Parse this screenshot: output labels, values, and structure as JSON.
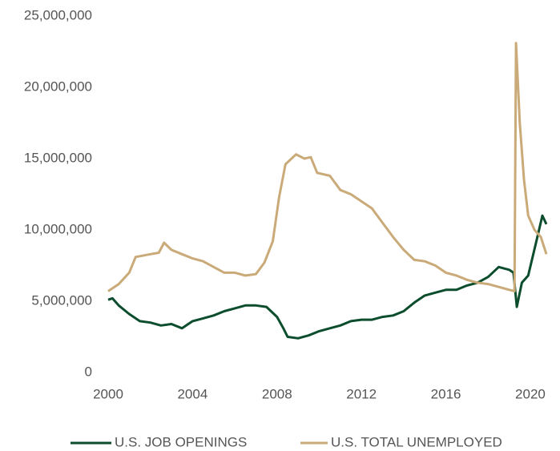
{
  "chart_data": {
    "type": "line",
    "series": [
      {
        "name": "U.S. JOB OPENINGS",
        "color": "#0b4d2c",
        "x": [
          2000,
          2000.2,
          2000.5,
          2001,
          2001.5,
          2002,
          2002.5,
          2003,
          2003.5,
          2004,
          2004.5,
          2005,
          2005.5,
          2006,
          2006.5,
          2007,
          2007.5,
          2008,
          2008.3,
          2008.5,
          2009,
          2009.5,
          2010,
          2010.5,
          2011,
          2011.5,
          2012,
          2012.5,
          2013,
          2013.5,
          2014,
          2014.5,
          2015,
          2015.5,
          2016,
          2016.5,
          2017,
          2017.5,
          2018,
          2018.5,
          2019,
          2019.2,
          2019.36,
          2019.6,
          2019.9,
          2020.3,
          2020.57,
          2020.76
        ],
        "values": [
          5100000,
          5200000,
          4700000,
          4100000,
          3600000,
          3500000,
          3300000,
          3400000,
          3100000,
          3600000,
          3800000,
          4000000,
          4300000,
          4500000,
          4700000,
          4700000,
          4600000,
          3900000,
          3100000,
          2500000,
          2400000,
          2600000,
          2900000,
          3100000,
          3300000,
          3600000,
          3700000,
          3700000,
          3900000,
          4000000,
          4300000,
          4900000,
          5400000,
          5600000,
          5800000,
          5800000,
          6100000,
          6300000,
          6700000,
          7400000,
          7200000,
          7000000,
          4600000,
          6300000,
          6800000,
          9300000,
          11000000,
          10400000
        ]
      },
      {
        "name": "U.S. TOTAL UNEMPLOYED",
        "color": "#c9aa78",
        "x": [
          2000,
          2000.5,
          2001,
          2001.3,
          2002,
          2002.4,
          2002.65,
          2003,
          2003.5,
          2004,
          2004.5,
          2005,
          2005.5,
          2006,
          2006.5,
          2007,
          2007.4,
          2007.8,
          2008.1,
          2008.4,
          2008.9,
          2009.3,
          2009.6,
          2009.9,
          2010.5,
          2011,
          2011.5,
          2012,
          2012.5,
          2013,
          2013.5,
          2014,
          2014.5,
          2015,
          2015.5,
          2016,
          2016.5,
          2017,
          2017.5,
          2018,
          2018.5,
          2019,
          2019.25,
          2019.32,
          2019.5,
          2019.7,
          2019.9,
          2020.2,
          2020.5,
          2020.76
        ],
        "values": [
          5700000,
          6200000,
          7000000,
          8100000,
          8300000,
          8400000,
          9100000,
          8600000,
          8300000,
          8000000,
          7800000,
          7400000,
          7000000,
          7000000,
          6800000,
          6900000,
          7700000,
          9200000,
          12300000,
          14600000,
          15300000,
          15000000,
          15100000,
          14000000,
          13800000,
          12800000,
          12500000,
          12000000,
          11500000,
          10500000,
          9500000,
          8600000,
          7900000,
          7800000,
          7500000,
          7000000,
          6800000,
          6500000,
          6300000,
          6200000,
          6000000,
          5800000,
          5700000,
          23100000,
          17500000,
          13500000,
          11000000,
          10000000,
          9500000,
          8300000
        ]
      }
    ],
    "xlim": [
      2000,
      2020.76
    ],
    "xticks": [
      2000,
      2004,
      2008,
      2012,
      2016,
      2020
    ],
    "ylim": [
      0,
      25000000
    ],
    "yticks": [
      0,
      {
        "value": 5000000,
        "label": "5,000,000"
      },
      {
        "value": 10000000,
        "label": "10,000,000"
      },
      {
        "value": 15000000,
        "label": "15,000,000"
      },
      {
        "value": 20000000,
        "label": "20,000,000"
      },
      {
        "value": 25000000,
        "label": "25,000,000"
      }
    ],
    "grid": false,
    "legend": "bottom"
  }
}
